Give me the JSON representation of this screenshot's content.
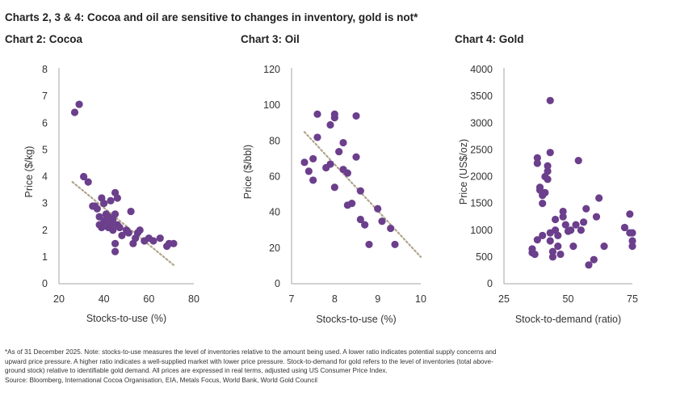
{
  "title": "Charts 2, 3 & 4: Cocoa and oil are sensitive to changes in inventory, gold is not*",
  "footnote": [
    "*As of 31 December 2025. Note: stocks-to-use measures the level of inventories relative to the amount being used. A lower ratio indicates potential supply concerns and",
    "upward price pressure. A higher ratio indicates a well-supplied market with lower price pressure. Stock-to-demand for gold refers to the level of inventories (total above-",
    "ground stock) relative to identifiable gold demand. All prices are expressed in real terms, adjusted using US Consumer Price Index.",
    "Source: Bloomberg, International Cocoa Organisation, EIA, Metals Focus, World Bank, World Gold Council"
  ],
  "colors": {
    "marker": "#6b3f8c",
    "trendline": "#b0a48c",
    "axis": "#a6a6a6"
  },
  "chart_data": [
    {
      "type": "scatter",
      "title": "Chart 2: Cocoa",
      "xlabel": "Stocks-to-use (%)",
      "ylabel": "Price ($/kg)",
      "xlim": [
        20,
        80
      ],
      "ylim": [
        0,
        8
      ],
      "xticks": [
        20,
        40,
        60,
        80
      ],
      "yticks": [
        0,
        1,
        2,
        3,
        4,
        5,
        6,
        7,
        8
      ],
      "trendline": {
        "style": "dotted",
        "from": [
          26,
          3.8
        ],
        "to": [
          71,
          0.7
        ]
      },
      "points": [
        [
          27,
          6.4
        ],
        [
          29,
          6.7
        ],
        [
          31,
          4.0
        ],
        [
          33,
          3.8
        ],
        [
          35,
          2.9
        ],
        [
          36,
          2.9
        ],
        [
          37,
          2.8
        ],
        [
          38,
          2.2
        ],
        [
          38,
          2.5
        ],
        [
          39,
          3.2
        ],
        [
          39,
          2.1
        ],
        [
          40,
          2.3
        ],
        [
          40,
          3.0
        ],
        [
          41,
          2.4
        ],
        [
          41,
          2.6
        ],
        [
          42,
          2.1
        ],
        [
          42,
          2.5
        ],
        [
          43,
          2.2
        ],
        [
          43,
          3.1
        ],
        [
          44,
          2.4
        ],
        [
          44,
          2.0
        ],
        [
          45,
          3.4
        ],
        [
          45,
          2.6
        ],
        [
          45,
          1.5
        ],
        [
          45,
          1.2
        ],
        [
          46,
          3.2
        ],
        [
          46,
          2.2
        ],
        [
          47,
          2.1
        ],
        [
          48,
          1.8
        ],
        [
          50,
          2.0
        ],
        [
          51,
          1.9
        ],
        [
          52,
          2.7
        ],
        [
          53,
          1.5
        ],
        [
          54,
          1.7
        ],
        [
          55,
          1.9
        ],
        [
          56,
          2.0
        ],
        [
          58,
          1.6
        ],
        [
          60,
          1.7
        ],
        [
          62,
          1.6
        ],
        [
          65,
          1.7
        ],
        [
          68,
          1.4
        ],
        [
          69,
          1.5
        ],
        [
          71,
          1.5
        ]
      ]
    },
    {
      "type": "scatter",
      "title": "Chart 3: Oil",
      "xlabel": "Stocks-to-use (%)",
      "ylabel": "Price ($/bbl)",
      "xlim": [
        7,
        10
      ],
      "ylim": [
        0,
        120
      ],
      "xticks": [
        7,
        8,
        9,
        10
      ],
      "yticks": [
        0,
        20,
        40,
        60,
        80,
        100,
        120
      ],
      "trendline": {
        "style": "dotted",
        "from": [
          7.3,
          85
        ],
        "to": [
          10.0,
          15
        ]
      },
      "points": [
        [
          7.3,
          68
        ],
        [
          7.4,
          63
        ],
        [
          7.5,
          58
        ],
        [
          7.5,
          70
        ],
        [
          7.6,
          95
        ],
        [
          7.6,
          82
        ],
        [
          7.8,
          65
        ],
        [
          7.9,
          89
        ],
        [
          7.9,
          67
        ],
        [
          8.0,
          93
        ],
        [
          8.0,
          95
        ],
        [
          8.0,
          54
        ],
        [
          8.1,
          74
        ],
        [
          8.2,
          64
        ],
        [
          8.2,
          79
        ],
        [
          8.3,
          62
        ],
        [
          8.3,
          44
        ],
        [
          8.4,
          45
        ],
        [
          8.5,
          94
        ],
        [
          8.5,
          71
        ],
        [
          8.6,
          52
        ],
        [
          8.6,
          36
        ],
        [
          8.7,
          33
        ],
        [
          8.8,
          22
        ],
        [
          9.0,
          42
        ],
        [
          9.1,
          35
        ],
        [
          9.3,
          31
        ],
        [
          9.4,
          22
        ]
      ]
    },
    {
      "type": "scatter",
      "title": "Chart 4: Gold",
      "xlabel": "Stock-to-demand (ratio)",
      "ylabel": "Price (US$/oz)",
      "xlim": [
        25,
        75
      ],
      "ylim": [
        0,
        4000
      ],
      "xticks": [
        25,
        50,
        75
      ],
      "yticks": [
        0,
        500,
        1000,
        1500,
        2000,
        2500,
        3000,
        3500,
        4000
      ],
      "points": [
        [
          36,
          650
        ],
        [
          36,
          580
        ],
        [
          37,
          550
        ],
        [
          38,
          820
        ],
        [
          38,
          2250
        ],
        [
          38,
          2350
        ],
        [
          39,
          1750
        ],
        [
          39,
          1800
        ],
        [
          40,
          1650
        ],
        [
          40,
          1500
        ],
        [
          40,
          900
        ],
        [
          41,
          2000
        ],
        [
          41,
          1700
        ],
        [
          42,
          1950
        ],
        [
          42,
          2200
        ],
        [
          42,
          2100
        ],
        [
          43,
          3420
        ],
        [
          43,
          2450
        ],
        [
          43,
          800
        ],
        [
          43,
          950
        ],
        [
          44,
          600
        ],
        [
          44,
          500
        ],
        [
          45,
          1200
        ],
        [
          45,
          1000
        ],
        [
          46,
          700
        ],
        [
          46,
          900
        ],
        [
          47,
          550
        ],
        [
          48,
          1350
        ],
        [
          48,
          1250
        ],
        [
          49,
          1100
        ],
        [
          50,
          980
        ],
        [
          51,
          1000
        ],
        [
          52,
          700
        ],
        [
          53,
          1100
        ],
        [
          54,
          2300
        ],
        [
          55,
          1000
        ],
        [
          56,
          1150
        ],
        [
          57,
          1400
        ],
        [
          58,
          350
        ],
        [
          60,
          450
        ],
        [
          61,
          1250
        ],
        [
          62,
          1600
        ],
        [
          64,
          700
        ],
        [
          72,
          1050
        ],
        [
          74,
          950
        ],
        [
          74,
          1300
        ],
        [
          75,
          800
        ],
        [
          75,
          700
        ],
        [
          75,
          950
        ]
      ]
    }
  ]
}
